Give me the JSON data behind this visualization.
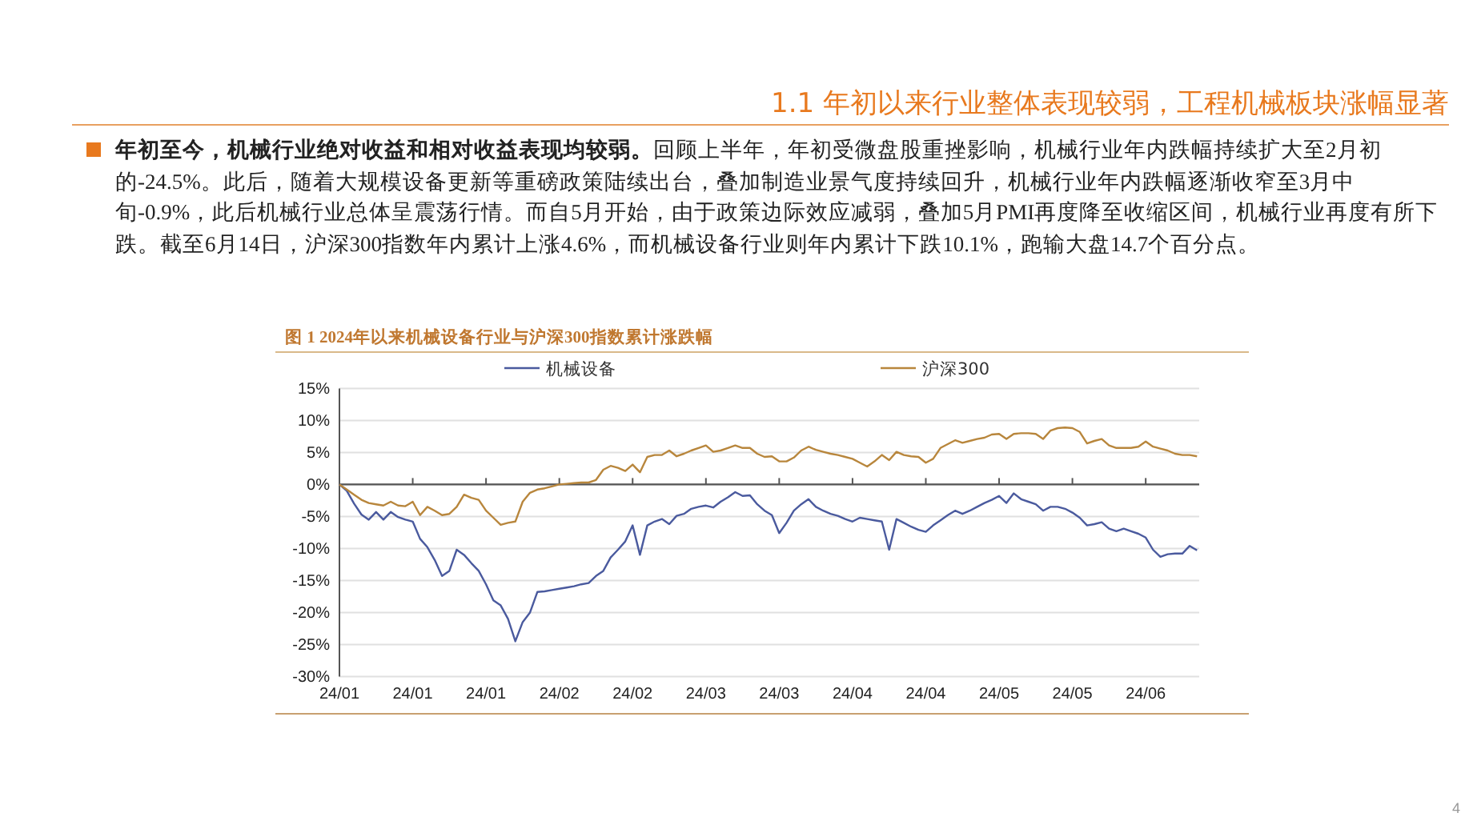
{
  "chart_data": {
    "type": "line",
    "title": "图 1 2024年以来机械设备行业与沪深300指数累计涨跌幅",
    "annotations": [
      "1.1 年初以来行业整体表现较弱，工程机械板块涨幅显著",
      "年初至今，机械行业绝对收益和相对收益表现均较弱。",
      "回顾上半年，年初受微盘股重挫影响，机械行业年内跌幅持续扩大至2月初的-24.5%。此后，随着大规模设备更新等重磅政策陆续出台，叠加制造业景气度持续回升，机械行业年内跌幅逐渐收窄至3月中旬-0.9%，此后机械行业总体呈震荡行情。而自5月开始，由于政策边际效应减弱，叠加5月PMI再度降至收缩区间，机械行业再度有所下跌。截至6月14日，沪深300指数年内累计上涨4.6%，而机械设备行业则年内累计下跌10.1%，跑输大盘14.7个百分点。",
      "4"
    ],
    "categories": [
      "24/01",
      null,
      null,
      null,
      null,
      null,
      null,
      null,
      null,
      null,
      "24/01",
      null,
      null,
      null,
      null,
      null,
      null,
      null,
      null,
      null,
      "24/01",
      null,
      null,
      null,
      null,
      null,
      null,
      null,
      null,
      null,
      "24/02",
      null,
      null,
      null,
      null,
      null,
      null,
      null,
      null,
      null,
      "24/02",
      null,
      null,
      null,
      null,
      null,
      null,
      null,
      null,
      null,
      "24/03",
      null,
      null,
      null,
      null,
      null,
      null,
      null,
      null,
      null,
      "24/03",
      null,
      null,
      null,
      null,
      null,
      null,
      null,
      null,
      null,
      "24/04",
      null,
      null,
      null,
      null,
      null,
      null,
      null,
      null,
      null,
      "24/04",
      null,
      null,
      null,
      null,
      null,
      null,
      null,
      null,
      null,
      "24/05",
      null,
      null,
      null,
      null,
      null,
      null,
      null,
      null,
      null,
      "24/05",
      null,
      null,
      null,
      null,
      null,
      null,
      null,
      null,
      null,
      "24/06",
      null,
      null,
      null,
      null,
      null,
      null,
      null
    ],
    "series": [
      {
        "name": "机械设备",
        "color": "#4a5a9e",
        "values": [
          0,
          -1,
          -3,
          -4.7,
          -5.5,
          -4.3,
          -5.5,
          -4.3,
          -5.1,
          -5.5,
          -5.8,
          -8.5,
          -9.8,
          -11.8,
          -14.3,
          -13.5,
          -10.2,
          -11,
          -12.3,
          -13.5,
          -15.6,
          -18.1,
          -18.9,
          -21,
          -24.5,
          -21.5,
          -20,
          -16.8,
          -16.7,
          -16.5,
          -16.3,
          -16.1,
          -15.9,
          -15.6,
          -15.4,
          -14.3,
          -13.5,
          -11.4,
          -10.2,
          -8.9,
          -6.4,
          -11,
          -6.4,
          -5.8,
          -5.4,
          -6.2,
          -4.9,
          -4.6,
          -3.8,
          -3.5,
          -3.3,
          -3.6,
          -2.7,
          -2,
          -1.2,
          -1.8,
          -1.7,
          -3.1,
          -4.1,
          -4.8,
          -7.6,
          -6,
          -4.1,
          -3.1,
          -2.3,
          -3.5,
          -4.1,
          -4.6,
          -4.9,
          -5.4,
          -5.8,
          -5.2,
          -5.4,
          -5.6,
          -5.8,
          -10.2,
          -5.4,
          -6,
          -6.6,
          -7.1,
          -7.4,
          -6.4,
          -5.6,
          -4.8,
          -4.1,
          -4.6,
          -4.1,
          -3.5,
          -2.9,
          -2.4,
          -1.8,
          -2.9,
          -1.4,
          -2.3,
          -2.7,
          -3.1,
          -4.1,
          -3.5,
          -3.5,
          -3.8,
          -4.4,
          -5.2,
          -6.4,
          -6.2,
          -5.9,
          -6.9,
          -7.3,
          -6.9,
          -7.3,
          -7.7,
          -8.3,
          -10.2,
          -11.3,
          -10.9,
          -10.8,
          -10.8,
          -9.6,
          -10.3
        ]
      },
      {
        "name": "沪深300",
        "color": "#b8863c",
        "values": [
          0,
          -0.8,
          -1.6,
          -2.4,
          -2.9,
          -3.1,
          -3.3,
          -2.7,
          -3.3,
          -3.4,
          -2.7,
          -4.8,
          -3.5,
          -4.1,
          -4.8,
          -4.6,
          -3.5,
          -1.6,
          -2.1,
          -2.4,
          -4.1,
          -5.2,
          -6.3,
          -6,
          -5.8,
          -2.7,
          -1.3,
          -0.8,
          -0.6,
          -0.3,
          0,
          0.1,
          0.2,
          0.3,
          0.3,
          0.7,
          2.3,
          2.9,
          2.6,
          2.1,
          3.1,
          1.9,
          4.3,
          4.6,
          4.6,
          5.3,
          4.4,
          4.8,
          5.3,
          5.7,
          6.1,
          5.1,
          5.3,
          5.7,
          6.1,
          5.7,
          5.7,
          4.8,
          4.3,
          4.4,
          3.6,
          3.6,
          4.2,
          5.3,
          5.9,
          5.4,
          5.1,
          4.8,
          4.6,
          4.3,
          4,
          3.4,
          2.8,
          3.6,
          4.6,
          3.8,
          5.1,
          4.6,
          4.4,
          4.3,
          3.4,
          4,
          5.7,
          6.3,
          6.9,
          6.5,
          6.8,
          7.1,
          7.3,
          7.8,
          7.9,
          7.1,
          7.9,
          8,
          8,
          7.9,
          7.1,
          8.4,
          8.8,
          8.9,
          8.8,
          8.2,
          6.4,
          6.8,
          7.1,
          6.1,
          5.7,
          5.7,
          5.7,
          5.9,
          6.7,
          5.9,
          5.6,
          5.3,
          4.8,
          4.6,
          4.6,
          4.4
        ]
      }
    ],
    "ylim": [
      -30,
      15
    ],
    "yticks": [
      {
        "value": -30,
        "label": "-30%"
      },
      {
        "value": -25,
        "label": "-25%"
      },
      {
        "value": -20,
        "label": "-20%"
      },
      {
        "value": -15,
        "label": "-15%"
      },
      {
        "value": -10,
        "label": "-10%"
      },
      {
        "value": -5,
        "label": "-5%"
      },
      {
        "value": 0,
        "label": "0%"
      },
      {
        "value": 5,
        "label": "5%"
      },
      {
        "value": 10,
        "label": "10%"
      },
      {
        "value": 15,
        "label": "15%"
      }
    ],
    "grid": "y",
    "legend": "top",
    "marker": "none",
    "line_style": "solid"
  }
}
